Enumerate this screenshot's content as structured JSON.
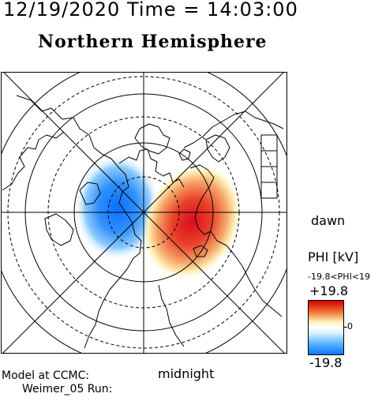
{
  "header": {
    "datetime": "12/19/2020 Time = 14:03:00",
    "title": "Northern Hemisphere"
  },
  "labels": {
    "dawn": "dawn",
    "midnight": "midnight",
    "model_line1": "Model at CCMC:",
    "model_line2": "Weimer_05 Run:"
  },
  "colorbar": {
    "title": "PHI [kV]",
    "range_text": "-19.8<PHI<19",
    "max": "+19.8",
    "mid": "0",
    "min": "-19.8",
    "colors": [
      "#d50000",
      "#f07a3a",
      "#fff6c0",
      "#ffffff",
      "#d8f2ff",
      "#59b6ff",
      "#0b75ff"
    ]
  },
  "map": {
    "projection": "polar stereographic, north pole centered",
    "latitude_circles_solid": 3,
    "latitude_circles_dashed": 3,
    "meridian_lines": 8,
    "positive_cell_color": "#e3001b",
    "negative_cell_color": "#1f86ff",
    "coastline_color": "#000000"
  }
}
